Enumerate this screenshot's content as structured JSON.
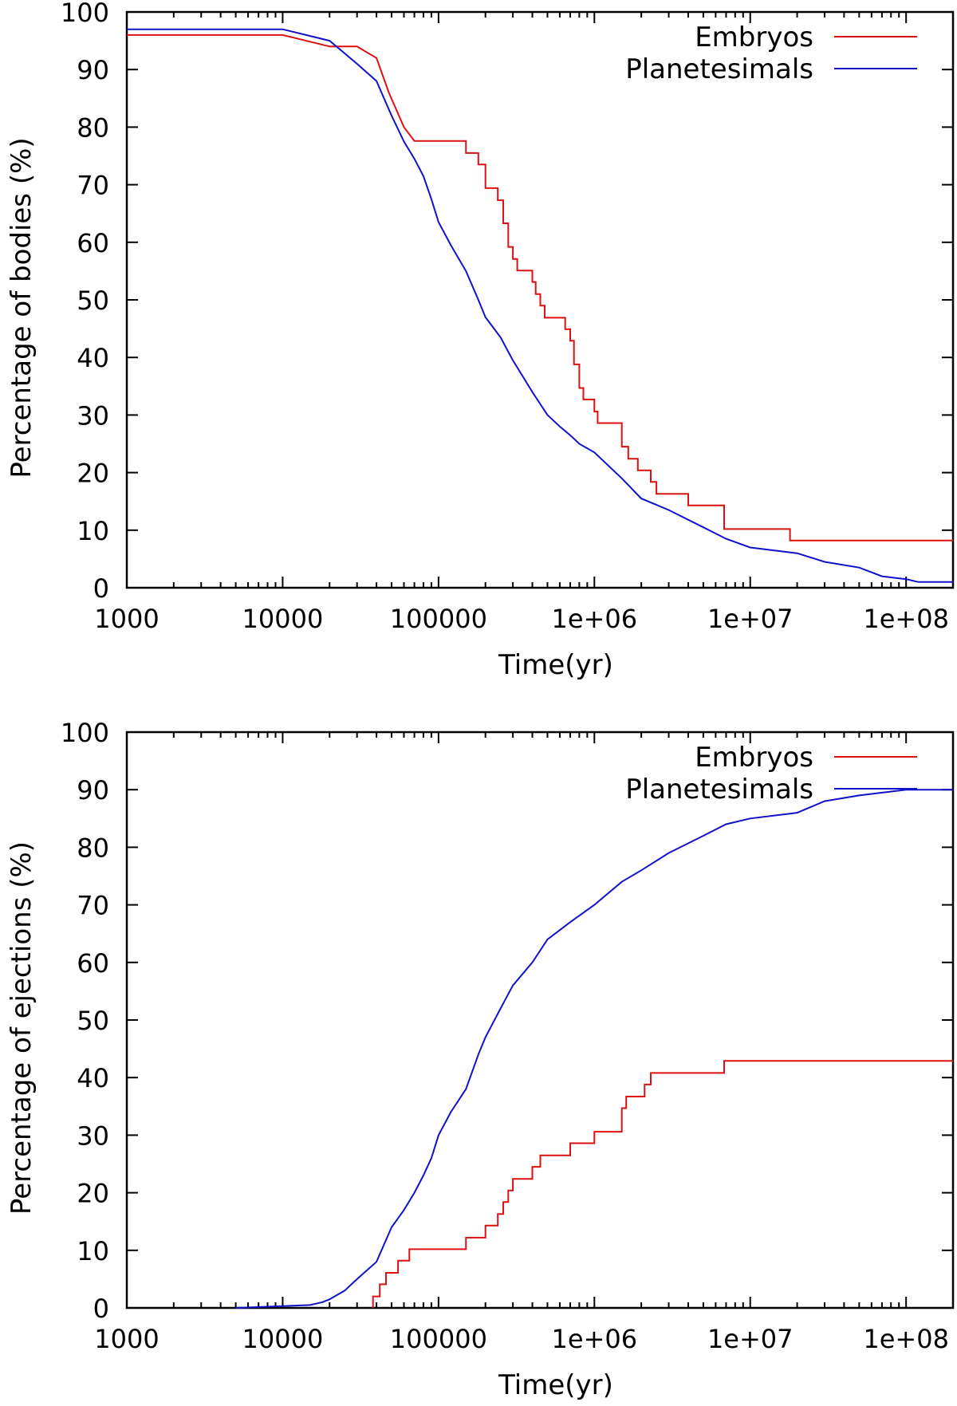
{
  "chart_data": [
    {
      "type": "line",
      "xlabel": "Time(yr)",
      "ylabel": "Percentage of bodies (%)",
      "xscale": "log",
      "xlim": [
        1000,
        200000000
      ],
      "ylim": [
        0,
        100
      ],
      "xticks": [
        "1000",
        "10000",
        "100000",
        "1e+06",
        "1e+07",
        "1e+08"
      ],
      "yticks": [
        "0",
        "10",
        "20",
        "30",
        "40",
        "50",
        "60",
        "70",
        "80",
        "90",
        "100"
      ],
      "grid": false,
      "legend_placement": "top-right",
      "series": [
        {
          "name": "Embryos",
          "color": "#dd1111",
          "step": true,
          "points": [
            [
              1000,
              96
            ],
            [
              10000,
              96
            ],
            [
              20000,
              94
            ],
            [
              30000,
              94
            ],
            [
              40000,
              92
            ],
            [
              48000,
              86
            ],
            [
              60000,
              80
            ],
            [
              70000,
              77.6
            ],
            [
              150000,
              77.6
            ],
            [
              150000,
              75.5
            ],
            [
              180000,
              75.5
            ],
            [
              180000,
              73.5
            ],
            [
              200000,
              73.5
            ],
            [
              200000,
              69.4
            ],
            [
              240000,
              69.4
            ],
            [
              240000,
              67.3
            ],
            [
              260000,
              67.3
            ],
            [
              260000,
              63.3
            ],
            [
              280000,
              63.3
            ],
            [
              280000,
              59.2
            ],
            [
              300000,
              59.2
            ],
            [
              300000,
              57.1
            ],
            [
              320000,
              57.1
            ],
            [
              320000,
              55.1
            ],
            [
              400000,
              55.1
            ],
            [
              400000,
              53.1
            ],
            [
              420000,
              53.1
            ],
            [
              420000,
              51
            ],
            [
              450000,
              51
            ],
            [
              450000,
              49
            ],
            [
              480000,
              49
            ],
            [
              480000,
              46.9
            ],
            [
              650000,
              46.9
            ],
            [
              650000,
              44.9
            ],
            [
              700000,
              44.9
            ],
            [
              700000,
              42.9
            ],
            [
              740000,
              42.9
            ],
            [
              740000,
              38.8
            ],
            [
              800000,
              38.8
            ],
            [
              800000,
              34.7
            ],
            [
              850000,
              34.7
            ],
            [
              850000,
              32.7
            ],
            [
              1000000,
              32.7
            ],
            [
              1000000,
              30.6
            ],
            [
              1050000,
              30.6
            ],
            [
              1050000,
              28.6
            ],
            [
              1500000,
              28.6
            ],
            [
              1500000,
              24.5
            ],
            [
              1650000,
              24.5
            ],
            [
              1650000,
              22.4
            ],
            [
              1900000,
              22.4
            ],
            [
              1900000,
              20.4
            ],
            [
              2300000,
              20.4
            ],
            [
              2300000,
              18.4
            ],
            [
              2500000,
              18.4
            ],
            [
              2500000,
              16.3
            ],
            [
              4000000,
              16.3
            ],
            [
              4000000,
              14.3
            ],
            [
              6800000,
              14.3
            ],
            [
              6800000,
              10.2
            ],
            [
              18000000,
              10.2
            ],
            [
              18000000,
              8.2
            ],
            [
              200000000,
              8.2
            ]
          ]
        },
        {
          "name": "Planetesimals",
          "color": "#1111cc",
          "step": false,
          "points": [
            [
              1000,
              97
            ],
            [
              10000,
              97
            ],
            [
              20000,
              95
            ],
            [
              30000,
              91
            ],
            [
              40000,
              88
            ],
            [
              50000,
              82
            ],
            [
              60000,
              77.5
            ],
            [
              70000,
              74.5
            ],
            [
              80000,
              71.5
            ],
            [
              90000,
              67.5
            ],
            [
              100000,
              63.5
            ],
            [
              120000,
              59.5
            ],
            [
              150000,
              55
            ],
            [
              180000,
              50
            ],
            [
              200000,
              47
            ],
            [
              250000,
              43.5
            ],
            [
              300000,
              39.5
            ],
            [
              400000,
              34
            ],
            [
              500000,
              30
            ],
            [
              600000,
              28
            ],
            [
              700000,
              26.5
            ],
            [
              800000,
              25
            ],
            [
              1000000,
              23.5
            ],
            [
              1500000,
              19
            ],
            [
              2000000,
              15.5
            ],
            [
              3000000,
              13.5
            ],
            [
              5000000,
              10.5
            ],
            [
              7000000,
              8.5
            ],
            [
              10000000,
              7
            ],
            [
              20000000,
              6
            ],
            [
              30000000,
              4.5
            ],
            [
              50000000,
              3.5
            ],
            [
              70000000,
              2
            ],
            [
              100000000,
              1.5
            ],
            [
              120000000,
              1
            ],
            [
              200000000,
              1
            ]
          ]
        }
      ]
    },
    {
      "type": "line",
      "xlabel": "Time(yr)",
      "ylabel": "Percentage of ejections (%)",
      "xscale": "log",
      "xlim": [
        1000,
        200000000
      ],
      "ylim": [
        0,
        100
      ],
      "xticks": [
        "1000",
        "10000",
        "100000",
        "1e+06",
        "1e+07",
        "1e+08"
      ],
      "yticks": [
        "0",
        "10",
        "20",
        "30",
        "40",
        "50",
        "60",
        "70",
        "80",
        "90",
        "100"
      ],
      "grid": false,
      "legend_placement": "top-right",
      "series": [
        {
          "name": "Embryos",
          "color": "#dd1111",
          "step": true,
          "points": [
            [
              38000,
              0
            ],
            [
              38000,
              2
            ],
            [
              42000,
              2
            ],
            [
              42000,
              4.1
            ],
            [
              46000,
              4.1
            ],
            [
              46000,
              6.1
            ],
            [
              55000,
              6.1
            ],
            [
              55000,
              8.2
            ],
            [
              65000,
              8.2
            ],
            [
              65000,
              10.2
            ],
            [
              150000,
              10.2
            ],
            [
              150000,
              12.2
            ],
            [
              200000,
              12.2
            ],
            [
              200000,
              14.3
            ],
            [
              240000,
              14.3
            ],
            [
              240000,
              16.3
            ],
            [
              260000,
              16.3
            ],
            [
              260000,
              18.4
            ],
            [
              280000,
              18.4
            ],
            [
              280000,
              20.4
            ],
            [
              300000,
              20.4
            ],
            [
              300000,
              22.4
            ],
            [
              400000,
              22.4
            ],
            [
              400000,
              24.5
            ],
            [
              450000,
              24.5
            ],
            [
              450000,
              26.5
            ],
            [
              700000,
              26.5
            ],
            [
              700000,
              28.6
            ],
            [
              1000000,
              28.6
            ],
            [
              1000000,
              30.6
            ],
            [
              1500000,
              30.6
            ],
            [
              1500000,
              34.7
            ],
            [
              1600000,
              34.7
            ],
            [
              1600000,
              36.7
            ],
            [
              2100000,
              36.7
            ],
            [
              2100000,
              38.8
            ],
            [
              2300000,
              38.8
            ],
            [
              2300000,
              40.8
            ],
            [
              6800000,
              40.8
            ],
            [
              6800000,
              42.9
            ],
            [
              200000000,
              42.9
            ]
          ]
        },
        {
          "name": "Planetesimals",
          "color": "#1111cc",
          "step": false,
          "points": [
            [
              5000,
              0
            ],
            [
              10000,
              0.3
            ],
            [
              15000,
              0.5
            ],
            [
              18000,
              1
            ],
            [
              20000,
              1.5
            ],
            [
              25000,
              3
            ],
            [
              30000,
              5
            ],
            [
              40000,
              8
            ],
            [
              50000,
              14
            ],
            [
              60000,
              17
            ],
            [
              70000,
              20
            ],
            [
              80000,
              23
            ],
            [
              90000,
              26
            ],
            [
              100000,
              30
            ],
            [
              120000,
              34
            ],
            [
              150000,
              38
            ],
            [
              180000,
              44
            ],
            [
              200000,
              47
            ],
            [
              250000,
              52
            ],
            [
              300000,
              56
            ],
            [
              400000,
              60
            ],
            [
              500000,
              64
            ],
            [
              700000,
              67
            ],
            [
              1000000,
              70
            ],
            [
              1500000,
              74
            ],
            [
              2000000,
              76
            ],
            [
              3000000,
              79
            ],
            [
              5000000,
              82
            ],
            [
              7000000,
              84
            ],
            [
              10000000,
              85
            ],
            [
              20000000,
              86
            ],
            [
              30000000,
              88
            ],
            [
              50000000,
              89
            ],
            [
              100000000,
              90
            ],
            [
              200000000,
              90
            ]
          ]
        }
      ]
    }
  ]
}
